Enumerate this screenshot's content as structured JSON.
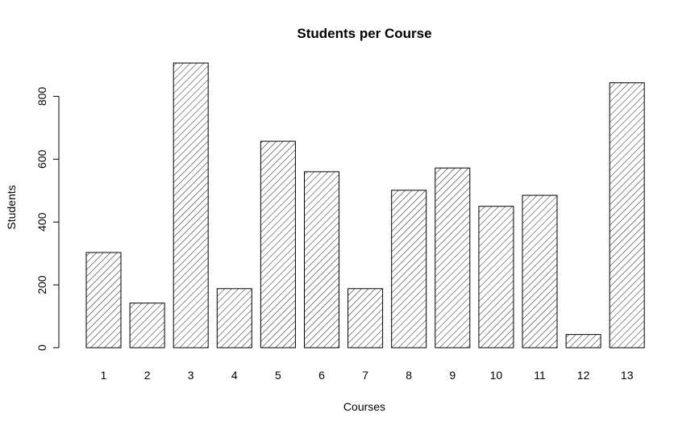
{
  "chart_data": {
    "type": "bar",
    "title": "Students per Course",
    "xlabel": "Courses",
    "ylabel": "Students",
    "categories": [
      "1",
      "2",
      "3",
      "4",
      "5",
      "6",
      "7",
      "8",
      "9",
      "10",
      "11",
      "12",
      "13"
    ],
    "values": [
      303,
      142,
      906,
      188,
      657,
      560,
      188,
      501,
      572,
      450,
      485,
      42,
      843
    ],
    "ylim": [
      0,
      910
    ],
    "yticks": [
      0,
      200,
      400,
      600,
      800
    ],
    "grid": false,
    "legend": "none",
    "bar_fill": "diagonal-hatch",
    "bar_color": "#000000"
  }
}
